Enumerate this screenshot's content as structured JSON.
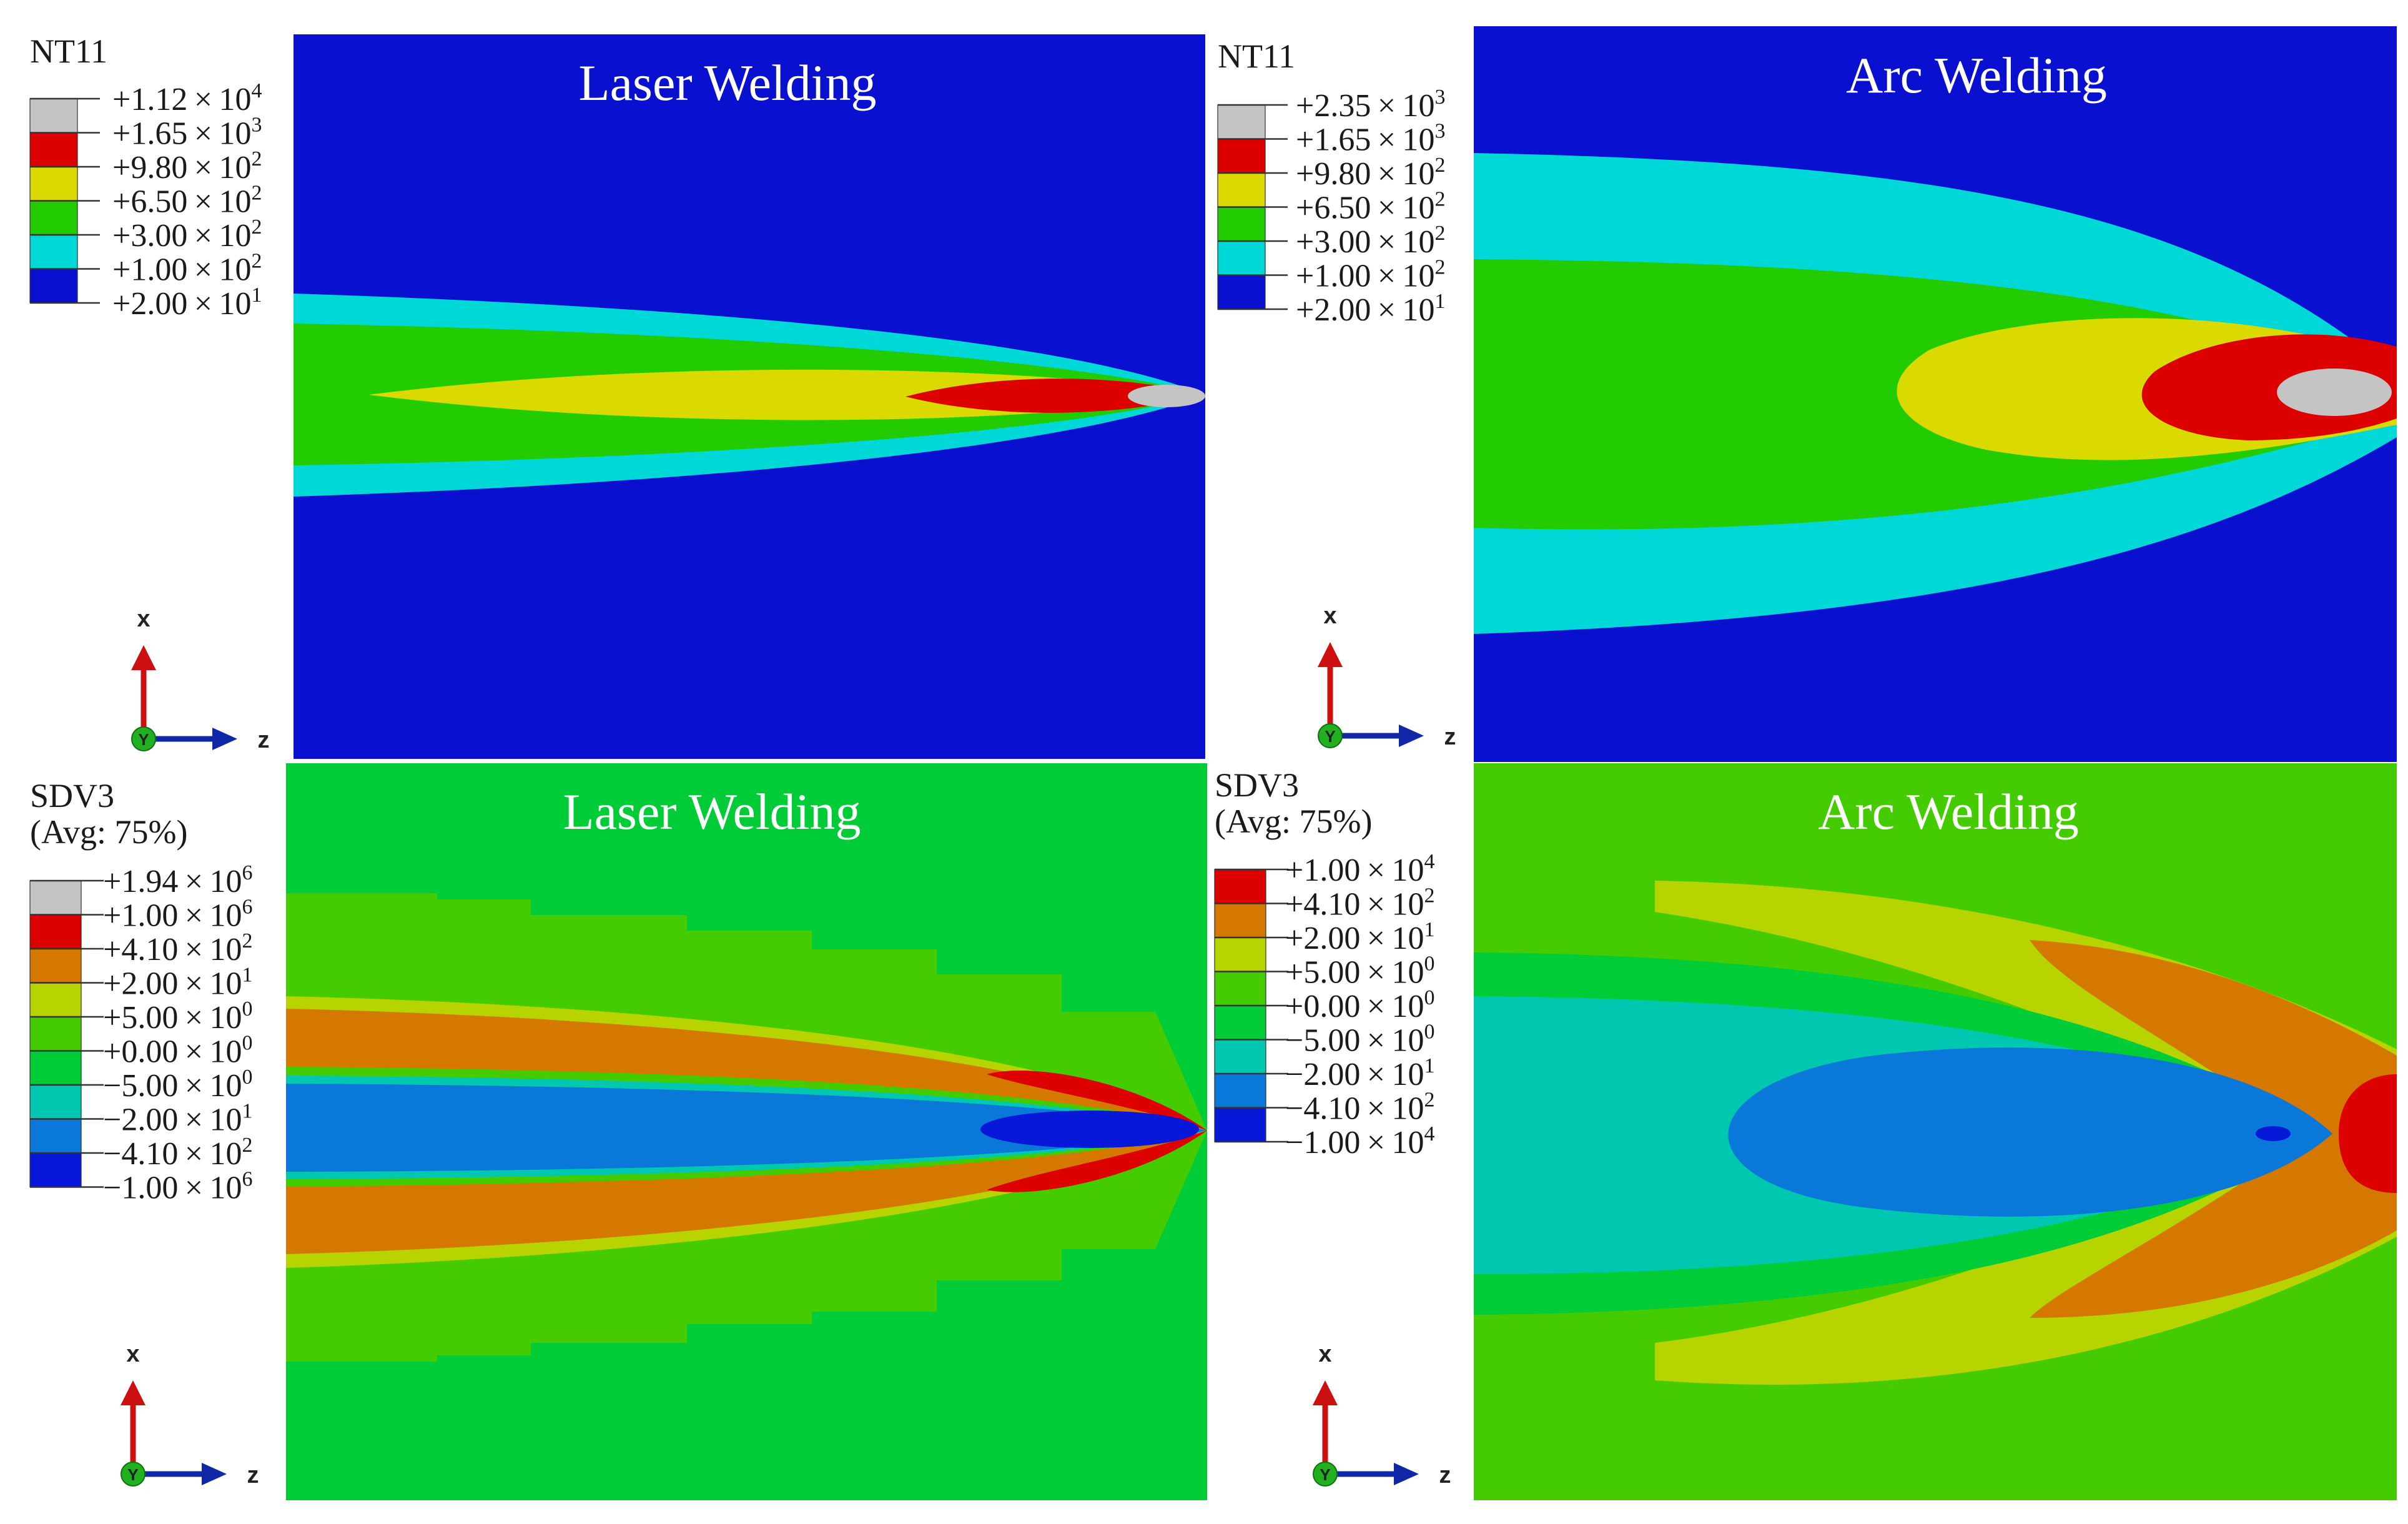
{
  "colors": {
    "nt_blue": "#0a10d0",
    "nt_cyan": "#00d8d8",
    "nt_green": "#22cc00",
    "nt_yellow": "#dada00",
    "nt_red": "#dd0000",
    "nt_grey": "#c4c4c4",
    "sdv_blue_dark": "#0818d8",
    "sdv_blue": "#0a78d8",
    "sdv_teal": "#00c8b0",
    "sdv_green": "#00cc38",
    "sdv_lgreen": "#44cc00",
    "sdv_yellow": "#b8d400",
    "sdv_orange": "#d47800",
    "sdv_red": "#dd0000",
    "sdv_grey": "#c4c4c4",
    "axis_red": "#cc1010",
    "axis_blue": "#1028a8",
    "axis_green": "#20b020"
  },
  "panels": [
    {
      "id": "nt11-laser",
      "title": "Laser Welding",
      "legend": {
        "heading": "NT11",
        "subheading": "",
        "swatches": [
          "nt_grey",
          "nt_red",
          "nt_yellow",
          "nt_green",
          "nt_cyan",
          "nt_blue"
        ],
        "values": [
          {
            "m": "+1.12",
            "e": "4"
          },
          {
            "m": "+1.65",
            "e": "3"
          },
          {
            "m": "+9.80",
            "e": "2"
          },
          {
            "m": "+6.50",
            "e": "2"
          },
          {
            "m": "+3.00",
            "e": "2"
          },
          {
            "m": "+1.00",
            "e": "2"
          },
          {
            "m": "+2.00",
            "e": "1"
          }
        ]
      },
      "axes": {
        "up": "x",
        "right": "z",
        "out": "Y"
      }
    },
    {
      "id": "nt11-arc",
      "title": "Arc Welding",
      "legend": {
        "heading": "NT11",
        "subheading": "",
        "swatches": [
          "nt_grey",
          "nt_red",
          "nt_yellow",
          "nt_green",
          "nt_cyan",
          "nt_blue"
        ],
        "values": [
          {
            "m": "+2.35",
            "e": "3"
          },
          {
            "m": "+1.65",
            "e": "3"
          },
          {
            "m": "+9.80",
            "e": "2"
          },
          {
            "m": "+6.50",
            "e": "2"
          },
          {
            "m": "+3.00",
            "e": "2"
          },
          {
            "m": "+1.00",
            "e": "2"
          },
          {
            "m": "+2.00",
            "e": "1"
          }
        ]
      },
      "axes": {
        "up": "x",
        "right": "z",
        "out": "Y"
      }
    },
    {
      "id": "sdv3-laser",
      "title": "Laser Welding",
      "legend": {
        "heading": "SDV3",
        "subheading": "(Avg: 75%)",
        "swatches": [
          "sdv_grey",
          "sdv_red",
          "sdv_orange",
          "sdv_yellow",
          "sdv_lgreen",
          "sdv_green",
          "sdv_teal",
          "sdv_blue",
          "sdv_blue_dark"
        ],
        "values": [
          {
            "m": "+1.94",
            "e": "6"
          },
          {
            "m": "+1.00",
            "e": "6"
          },
          {
            "m": "+4.10",
            "e": "2"
          },
          {
            "m": "+2.00",
            "e": "1"
          },
          {
            "m": "+5.00",
            "e": "0"
          },
          {
            "m": "+0.00",
            "e": "0"
          },
          {
            "m": "−5.00",
            "e": "0"
          },
          {
            "m": "−2.00",
            "e": "1"
          },
          {
            "m": "−4.10",
            "e": "2"
          },
          {
            "m": "−1.00",
            "e": "6"
          }
        ]
      },
      "axes": {
        "up": "x",
        "right": "z",
        "out": "Y"
      }
    },
    {
      "id": "sdv3-arc",
      "title": "Arc Welding",
      "legend": {
        "heading": "SDV3",
        "subheading": "(Avg: 75%)",
        "swatches": [
          "sdv_red",
          "sdv_orange",
          "sdv_yellow",
          "sdv_lgreen",
          "sdv_green",
          "sdv_teal",
          "sdv_blue",
          "sdv_blue_dark"
        ],
        "values": [
          {
            "m": "+1.00",
            "e": "4"
          },
          {
            "m": "+4.10",
            "e": "2"
          },
          {
            "m": "+2.00",
            "e": "1"
          },
          {
            "m": "+5.00",
            "e": "0"
          },
          {
            "m": "+0.00",
            "e": "0"
          },
          {
            "m": "−5.00",
            "e": "0"
          },
          {
            "m": "−2.00",
            "e": "1"
          },
          {
            "m": "−4.10",
            "e": "2"
          },
          {
            "m": "−1.00",
            "e": "4"
          }
        ]
      },
      "axes": {
        "up": "x",
        "right": "z",
        "out": "Y"
      }
    }
  ]
}
